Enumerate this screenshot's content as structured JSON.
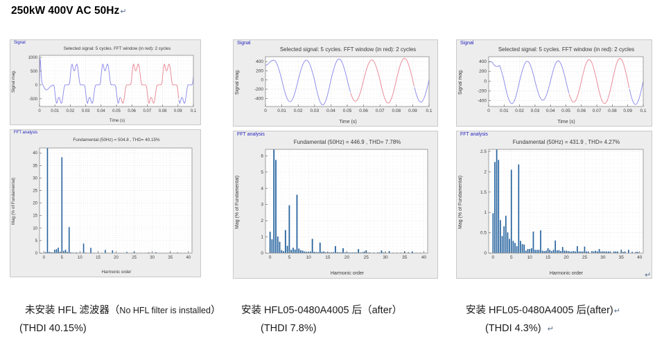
{
  "page": {
    "title": "250kW 400V AC 50Hz"
  },
  "marks": {
    "pilcrow": "↵"
  },
  "colors": {
    "panel_bg": "#ededed",
    "panel_border": "#c8c8c8",
    "panel_label": "#2222bb",
    "plot_bg": "#ffffff",
    "frame": "#8a8a8a",
    "grid_major": "#d6d6d6",
    "grid_minor": "#ececec",
    "wave_blue": "#8585ea",
    "wave_red": "#e8818f",
    "bar_blue": "#26639e",
    "text": "#3a3a3a"
  },
  "chart_data": [
    {
      "panel": 1,
      "kind": "signal",
      "type": "line",
      "panel_label": "Signal",
      "title": "Selected signal: 5 cycles. FFT window (in red): 2 cycles",
      "xlabel": "Time (s)",
      "ylabel": "Signal mag.",
      "xlim": [
        0,
        0.1
      ],
      "ylim": [
        -780,
        1070
      ],
      "xticks": [
        0,
        0.01,
        0.02,
        0.03,
        0.04,
        0.05,
        0.06,
        0.07,
        0.08,
        0.09,
        0.1
      ],
      "yticks": [
        -500,
        0,
        500,
        1000
      ],
      "minor": [
        0.002,
        125
      ],
      "tfs": 6,
      "grid": true,
      "line_color": "#8585ea",
      "window_color": "#e8818f",
      "window_ms": [
        53,
        90.5
      ],
      "waveform": {
        "model": "pulse-train",
        "transient_ms_v": [
          [
            0,
            10
          ],
          [
            0.3,
            1000
          ],
          [
            0.7,
            820
          ],
          [
            1.0,
            430
          ],
          [
            1.5,
            120
          ],
          [
            2.0,
            10
          ],
          [
            2.6,
            -40
          ],
          [
            3.4,
            -140
          ],
          [
            4.5,
            -185
          ],
          [
            5.6,
            -150
          ],
          [
            6.6,
            -85
          ],
          [
            7.6,
            -35
          ],
          [
            8.5,
            -12
          ],
          [
            9,
            0
          ]
        ],
        "pulse_ms_v": [
          [
            0,
            0
          ],
          [
            0.6,
            80
          ],
          [
            1.2,
            420
          ],
          [
            1.8,
            700
          ],
          [
            2.2,
            760
          ],
          [
            2.7,
            645
          ],
          [
            3.3,
            515
          ],
          [
            3.9,
            520
          ],
          [
            4.6,
            685
          ],
          [
            5.2,
            760
          ],
          [
            5.7,
            690
          ],
          [
            6.3,
            430
          ],
          [
            6.9,
            140
          ],
          [
            7.4,
            25
          ],
          [
            7.6,
            0
          ],
          [
            9.99,
            0
          ]
        ],
        "neg_scale": 0.88,
        "pattern_start_ms": 9,
        "period_ms": 20,
        "negative_first": true
      }
    },
    {
      "panel": 1,
      "kind": "fft",
      "type": "bar",
      "panel_label": "FFT analysis",
      "title": "Fundamental (50Hz) = 504.8 , THD= 40.15%",
      "xlabel": "Harmonic order",
      "ylabel": "Mag (% of Fundamental)",
      "xlim": [
        -1.2,
        41
      ],
      "ylim": [
        0,
        42
      ],
      "xticks": [
        0,
        5,
        10,
        15,
        20,
        25,
        30,
        35,
        40
      ],
      "yticks": [
        0,
        5,
        10,
        15,
        20,
        25,
        30,
        35,
        40
      ],
      "minor": [
        1,
        1
      ],
      "tfs": 6,
      "grid": true,
      "bar_color": "#26639e",
      "bar_w": 1.6,
      "fundamental_hz": 50,
      "fundamental_value": 504.8,
      "thd_pct": 40.15,
      "bars": [
        [
          0.5,
          0.4
        ],
        [
          1,
          100
        ],
        [
          1.5,
          0.5
        ],
        [
          2,
          0.35
        ],
        [
          2.5,
          0.3
        ],
        [
          3,
          1.35
        ],
        [
          3.5,
          1.6
        ],
        [
          4,
          2.2
        ],
        [
          4.5,
          0.6
        ],
        [
          5,
          38.3
        ],
        [
          5.5,
          0.9
        ],
        [
          6,
          1.35
        ],
        [
          6.5,
          0.5
        ],
        [
          7,
          10.4
        ],
        [
          7.5,
          0.3
        ],
        [
          8,
          0.2
        ],
        [
          8.5,
          0.15
        ],
        [
          9,
          0.3
        ],
        [
          9.5,
          0.1
        ],
        [
          10,
          0.15
        ],
        [
          10.5,
          0.1
        ],
        [
          11,
          3.8
        ],
        [
          11.5,
          0.2
        ],
        [
          12,
          0.15
        ],
        [
          12.5,
          0.1
        ],
        [
          13,
          2.1
        ],
        [
          13.5,
          0.15
        ],
        [
          14,
          0.1
        ],
        [
          15,
          0.1
        ],
        [
          16,
          0.1
        ],
        [
          17,
          1.25
        ],
        [
          17.5,
          0.1
        ],
        [
          18,
          0.1
        ],
        [
          19,
          1.1
        ],
        [
          19.5,
          0.1
        ],
        [
          20,
          0.1
        ],
        [
          21,
          0.1
        ],
        [
          22,
          0.1
        ],
        [
          23,
          0.45
        ],
        [
          24,
          0.1
        ],
        [
          25,
          0.6
        ],
        [
          26,
          0.1
        ],
        [
          27,
          0.1
        ],
        [
          28,
          0.1
        ],
        [
          29,
          0.3
        ],
        [
          30,
          0.1
        ],
        [
          31,
          0.35
        ],
        [
          32,
          0.08
        ],
        [
          33,
          0.1
        ],
        [
          34,
          0.08
        ],
        [
          35,
          0.25
        ],
        [
          36,
          0.08
        ],
        [
          37,
          0.25
        ],
        [
          38,
          0.08
        ],
        [
          39,
          0.1
        ]
      ]
    },
    {
      "panel": 2,
      "kind": "signal",
      "type": "line",
      "panel_label": "Signal",
      "title": "Selected signal: 5 cycles. FFT window (in red): 2 cycles",
      "xlabel": "Time (s)",
      "ylabel": "Signal mag.",
      "xlim": [
        0,
        0.1
      ],
      "ylim": [
        -575,
        505
      ],
      "xticks": [
        0,
        0.01,
        0.02,
        0.03,
        0.04,
        0.05,
        0.06,
        0.07,
        0.08,
        0.09,
        0.1
      ],
      "yticks": [
        -400,
        -200,
        0,
        200,
        400
      ],
      "minor": [
        0.002,
        100
      ],
      "tfs": 6.5,
      "grid": true,
      "line_color": "#8585ea",
      "window_color": "#e8818f",
      "window_ms": [
        52,
        91
      ],
      "waveform": {
        "model": "sine-halves",
        "half_extremes": [
          430,
          -470,
          430,
          -540,
          455,
          -460,
          435,
          -500,
          470,
          -480
        ],
        "transient_ms_v": [
          [
            0,
            318
          ],
          [
            1,
            330
          ],
          [
            2,
            362
          ],
          [
            3,
            400
          ],
          [
            4,
            424
          ]
        ],
        "join_ms": 4.6,
        "half_period_ms": 10
      }
    },
    {
      "panel": 2,
      "kind": "fft",
      "type": "bar",
      "panel_label": "FFT analysis",
      "title": "Fundamental (50Hz) = 446.9 , THD= 7.78%",
      "xlabel": "Harmonic order",
      "ylabel": "Mag (% of Fundamental)",
      "xlim": [
        -1.2,
        41
      ],
      "ylim": [
        0,
        6.4
      ],
      "xticks": [
        0,
        5,
        10,
        15,
        20,
        25,
        30,
        35,
        40
      ],
      "yticks": [
        0,
        1,
        2,
        3,
        4,
        5,
        6
      ],
      "minor": [
        1,
        0.2
      ],
      "tfs": 6.5,
      "grid": true,
      "bar_color": "#26639e",
      "bar_w": 1.8,
      "fundamental_hz": 50,
      "fundamental_value": 446.9,
      "thd_pct": 7.78,
      "bars": [
        [
          0,
          1.32
        ],
        [
          0.5,
          0.85
        ],
        [
          1,
          100
        ],
        [
          1.5,
          5.75
        ],
        [
          2,
          1.02
        ],
        [
          2.5,
          0.7
        ],
        [
          3,
          0.18
        ],
        [
          3.5,
          0.12
        ],
        [
          4,
          1.42
        ],
        [
          4.5,
          0.45
        ],
        [
          5,
          2.95
        ],
        [
          5.5,
          0.2
        ],
        [
          6,
          0.33
        ],
        [
          6.5,
          0.22
        ],
        [
          7,
          3.6
        ],
        [
          7.5,
          0.28
        ],
        [
          8,
          0.18
        ],
        [
          8.5,
          0.15
        ],
        [
          9,
          0.1
        ],
        [
          9.5,
          0.08
        ],
        [
          10,
          0.07
        ],
        [
          10.5,
          0.1
        ],
        [
          11,
          0.88
        ],
        [
          11.5,
          0.08
        ],
        [
          12,
          0.06
        ],
        [
          12.5,
          0.06
        ],
        [
          13,
          0.65
        ],
        [
          13.5,
          0.08
        ],
        [
          14,
          0.1
        ],
        [
          14.5,
          0.05
        ],
        [
          15,
          0.05
        ],
        [
          15.5,
          0.05
        ],
        [
          16,
          0.05
        ],
        [
          16.5,
          0.06
        ],
        [
          17,
          0.43
        ],
        [
          17.5,
          0.06
        ],
        [
          18,
          0.05
        ],
        [
          18.5,
          0.05
        ],
        [
          19,
          0.3
        ],
        [
          19.5,
          0.05
        ],
        [
          20,
          0.05
        ],
        [
          20.5,
          0.04
        ],
        [
          21,
          0.04
        ],
        [
          21.5,
          0.04
        ],
        [
          22,
          0.04
        ],
        [
          22.5,
          0.04
        ],
        [
          23,
          0.25
        ],
        [
          23.5,
          0.04
        ],
        [
          24,
          0.05
        ],
        [
          24.5,
          0.1
        ],
        [
          25,
          0.17
        ],
        [
          25.5,
          0.04
        ],
        [
          26,
          0.04
        ],
        [
          27,
          0.04
        ],
        [
          28,
          0.04
        ],
        [
          28.5,
          0.04
        ],
        [
          29,
          0.16
        ],
        [
          29.5,
          0.04
        ],
        [
          30,
          0.05
        ],
        [
          31,
          0.12
        ],
        [
          32,
          0.03
        ],
        [
          33,
          0.03
        ],
        [
          34,
          0.03
        ],
        [
          35,
          0.1
        ],
        [
          36,
          0.05
        ],
        [
          37,
          0.1
        ],
        [
          38,
          0.03
        ],
        [
          39,
          0.03
        ]
      ]
    },
    {
      "panel": 3,
      "kind": "signal",
      "type": "line",
      "panel_label": "Signal",
      "title": "Selected signal: 5 cycles. FFT window (in red): 2 cycles",
      "xlabel": "Time (s)",
      "ylabel": "Signal mag.",
      "xlim": [
        0,
        0.1
      ],
      "ylim": [
        -520,
        500
      ],
      "xticks": [
        0,
        0.01,
        0.02,
        0.03,
        0.04,
        0.05,
        0.06,
        0.07,
        0.08,
        0.09,
        0.1
      ],
      "yticks": [
        -400,
        -200,
        0,
        200,
        400
      ],
      "minor": [
        0.002,
        100
      ],
      "tfs": 6.5,
      "grid": true,
      "line_color": "#8585ea",
      "window_color": "#e8818f",
      "window_ms": [
        52,
        91
      ],
      "waveform": {
        "model": "sine-halves",
        "half_extremes": [
          400,
          -460,
          405,
          -390,
          415,
          -430,
          440,
          -460,
          465,
          -478
        ],
        "transient_ms_v": [
          [
            0,
            385
          ],
          [
            0.8,
            396
          ],
          [
            1.6,
            400
          ],
          [
            2.5,
            378
          ],
          [
            3.5,
            330
          ],
          [
            4.5,
            306
          ],
          [
            5.6,
            298
          ],
          [
            6.5,
            308
          ],
          [
            7,
            322
          ]
        ],
        "join_ms": 7,
        "half_period_ms": 10
      }
    },
    {
      "panel": 3,
      "kind": "fft",
      "type": "bar",
      "panel_label": "FFT analysis",
      "title": "Fundamental (50Hz) = 431.9 , THD= 4.27%",
      "xlabel": "Harmonic order",
      "ylabel": "Mag (% of Fundamental)",
      "xlim": [
        -1.2,
        41
      ],
      "ylim": [
        0,
        2.55
      ],
      "xticks": [
        0,
        5,
        10,
        15,
        20,
        25,
        30,
        35,
        40
      ],
      "yticks": [
        0,
        0.5,
        1,
        1.5,
        2,
        2.5
      ],
      "minor": [
        1,
        0.1
      ],
      "tfs": 6.5,
      "grid": true,
      "bar_color": "#26639e",
      "bar_w": 1.7,
      "fundamental_hz": 50,
      "fundamental_value": 431.9,
      "thd_pct": 4.27,
      "bars": [
        [
          0,
          0.98
        ],
        [
          0.5,
          2.24
        ],
        [
          1,
          100
        ],
        [
          1.5,
          2.29
        ],
        [
          2,
          0.81
        ],
        [
          2.5,
          0.42
        ],
        [
          3,
          0.66
        ],
        [
          3.5,
          0.92
        ],
        [
          4,
          0.51
        ],
        [
          4.5,
          0.35
        ],
        [
          5,
          2.05
        ],
        [
          5.5,
          0.3
        ],
        [
          6,
          0.25
        ],
        [
          6.5,
          0.17
        ],
        [
          7,
          2.18
        ],
        [
          7.5,
          0.3
        ],
        [
          8,
          0.22
        ],
        [
          8.5,
          0.21
        ],
        [
          9,
          0.06
        ],
        [
          9.5,
          0.1
        ],
        [
          10,
          0.1
        ],
        [
          10.5,
          0.12
        ],
        [
          11,
          0.53
        ],
        [
          11.5,
          0.08
        ],
        [
          12,
          0.08
        ],
        [
          12.5,
          0.08
        ],
        [
          13,
          0.56
        ],
        [
          13.5,
          0.06
        ],
        [
          14,
          0.05
        ],
        [
          14.5,
          0.06
        ],
        [
          15,
          0.12
        ],
        [
          15.5,
          0.08
        ],
        [
          16,
          0.05
        ],
        [
          16.5,
          0.08
        ],
        [
          17,
          0.31
        ],
        [
          17.5,
          0.07
        ],
        [
          18,
          0.07
        ],
        [
          18.5,
          0.05
        ],
        [
          19,
          0.15
        ],
        [
          19.5,
          0.06
        ],
        [
          20,
          0.06
        ],
        [
          20.5,
          0.05
        ],
        [
          21,
          0.04
        ],
        [
          21.5,
          0.04
        ],
        [
          22,
          0.05
        ],
        [
          22.5,
          0.04
        ],
        [
          23,
          0.17
        ],
        [
          23.5,
          0.04
        ],
        [
          24,
          0.04
        ],
        [
          24.5,
          0.04
        ],
        [
          25,
          0.16
        ],
        [
          25.5,
          0.04
        ],
        [
          26,
          0.04
        ],
        [
          27,
          0.05
        ],
        [
          27.5,
          0.04
        ],
        [
          28,
          0.06
        ],
        [
          28.5,
          0.04
        ],
        [
          29,
          0.1
        ],
        [
          29.5,
          0.04
        ],
        [
          30,
          0.04
        ],
        [
          30.5,
          0.04
        ],
        [
          31,
          0.04
        ],
        [
          31.5,
          0.04
        ],
        [
          32,
          0.04
        ],
        [
          33,
          0.04
        ],
        [
          33.5,
          0.04
        ],
        [
          34,
          0.04
        ],
        [
          35,
          0.08
        ],
        [
          35.5,
          0.03
        ],
        [
          36,
          0.04
        ],
        [
          37,
          0.08
        ],
        [
          38,
          0.03
        ],
        [
          39,
          0.03
        ],
        [
          39.5,
          0.03
        ]
      ]
    }
  ],
  "captions": [
    {
      "line1_prefix": "未安装 HFL 滤波器（",
      "line1_en": "No HFL filter is installed",
      "line1_suffix": "）",
      "line2": "(THDI 40.15%)"
    },
    {
      "line1": "安装 HFL05-0480A4005 后（after）",
      "line2": "(THDI 7.8%)"
    },
    {
      "line1": "安装 HFL05-0480A4005 后(after)",
      "line2": "(THDI 4.3%)"
    }
  ]
}
